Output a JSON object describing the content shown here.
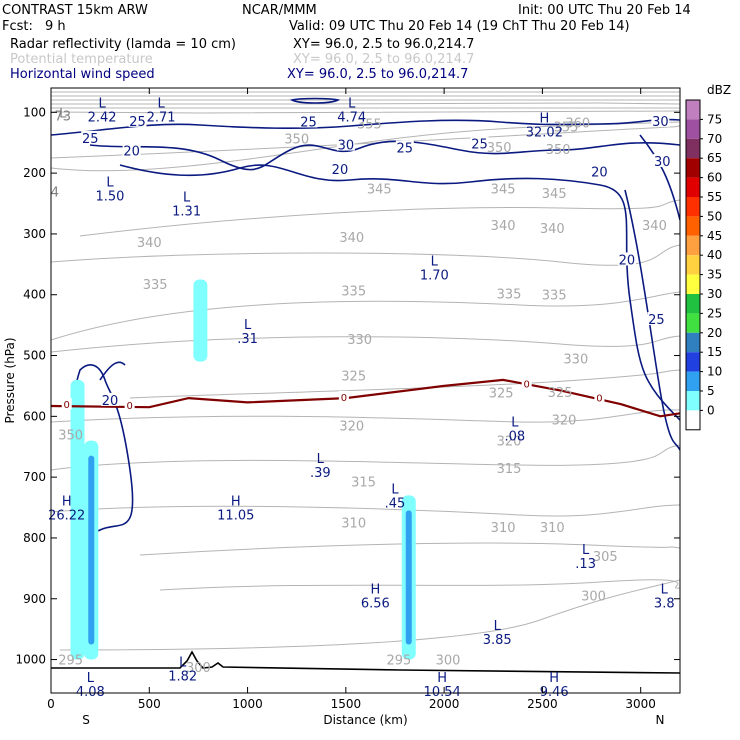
{
  "header": {
    "model": "CONTRAST 15km ARW",
    "org": "NCAR/MMM",
    "init": "Init: 00 UTC Thu 20 Feb 14",
    "fcst_label": "Fcst:",
    "fcst_value": "9 h",
    "valid": "Valid: 09 UTC Thu 20 Feb 14 (19 ChT Thu 20 Feb 14)",
    "fields": [
      {
        "name": "Radar reflectivity (lamda = 10 cm)",
        "xy": "XY=  96.0,  2.5 to  96.0,214.7",
        "color": "#000000"
      },
      {
        "name": "Potential temperature",
        "xy": "XY=  96.0,  2.5 to  96.0,214.7",
        "color": "#c8c8c8"
      },
      {
        "name": "Horizontal wind speed",
        "xy": "XY=  96.0,  2.5 to  96.0,214.7",
        "color": "#000080"
      }
    ]
  },
  "chart_data": {
    "type": "vertical-cross-section",
    "xlabel": "Distance (km)",
    "ylabel": "Pressure (hPa)",
    "xlim": [
      0,
      3200
    ],
    "ylim": [
      1055,
      60
    ],
    "xticks": [
      "0",
      "500",
      "1000",
      "1500",
      "2000",
      "2500",
      "3000"
    ],
    "yticks": [
      "100",
      "200",
      "300",
      "400",
      "500",
      "600",
      "700",
      "800",
      "900",
      "1000"
    ],
    "x_end_labels": [
      "S",
      "N"
    ],
    "colorbar": {
      "title": "dBZ",
      "levels": [
        "75",
        "70",
        "65",
        "60",
        "55",
        "50",
        "45",
        "40",
        "35",
        "30",
        "25",
        "20",
        "15",
        "10",
        "5",
        "0"
      ],
      "colors": [
        "#c080c0",
        "#a050a0",
        "#803060",
        "#a00000",
        "#e00000",
        "#ff3000",
        "#ff6000",
        "#ffa040",
        "#ffd040",
        "#ffff40",
        "#20c040",
        "#40e040",
        "#3080c0",
        "#2040e0",
        "#30a0f0",
        "#80ffff",
        "#ffffff"
      ]
    },
    "theta_labels": [
      {
        "x": 100,
        "p": 630,
        "label": "350"
      },
      {
        "x": 1250,
        "p": 143,
        "label": "350"
      },
      {
        "x": 1620,
        "p": 118,
        "label": "355"
      },
      {
        "x": 2280,
        "p": 157,
        "label": "350"
      },
      {
        "x": 2580,
        "p": 160,
        "label": "350"
      },
      {
        "x": 2620,
        "p": 123,
        "label": "355"
      },
      {
        "x": 2680,
        "p": 117,
        "label": "360"
      },
      {
        "x": 1670,
        "p": 225,
        "label": "345"
      },
      {
        "x": 2300,
        "p": 225,
        "label": "345"
      },
      {
        "x": 2560,
        "p": 233,
        "label": "345"
      },
      {
        "x": 500,
        "p": 313,
        "label": "340"
      },
      {
        "x": 1530,
        "p": 305,
        "label": "340"
      },
      {
        "x": 2300,
        "p": 285,
        "label": "340"
      },
      {
        "x": 2550,
        "p": 290,
        "label": "340"
      },
      {
        "x": 3070,
        "p": 285,
        "label": "340"
      },
      {
        "x": 530,
        "p": 382,
        "label": "335"
      },
      {
        "x": 1540,
        "p": 393,
        "label": "335"
      },
      {
        "x": 2330,
        "p": 398,
        "label": "335"
      },
      {
        "x": 2560,
        "p": 400,
        "label": "335"
      },
      {
        "x": 1570,
        "p": 473,
        "label": "330"
      },
      {
        "x": 2670,
        "p": 505,
        "label": "330"
      },
      {
        "x": 1540,
        "p": 533,
        "label": "325"
      },
      {
        "x": 2290,
        "p": 561,
        "label": "325"
      },
      {
        "x": 2590,
        "p": 560,
        "label": "325"
      },
      {
        "x": 1530,
        "p": 615,
        "label": "320"
      },
      {
        "x": 2330,
        "p": 640,
        "label": "320"
      },
      {
        "x": 2610,
        "p": 605,
        "label": "320"
      },
      {
        "x": 1590,
        "p": 707,
        "label": "315"
      },
      {
        "x": 2330,
        "p": 685,
        "label": "315"
      },
      {
        "x": 1540,
        "p": 775,
        "label": "310"
      },
      {
        "x": 2300,
        "p": 782,
        "label": "310"
      },
      {
        "x": 2550,
        "p": 782,
        "label": "310"
      },
      {
        "x": 2820,
        "p": 830,
        "label": "305"
      },
      {
        "x": 2760,
        "p": 895,
        "label": "300"
      },
      {
        "x": 750,
        "p": 1012,
        "label": "300"
      },
      {
        "x": 100,
        "p": 1000,
        "label": "295"
      },
      {
        "x": 1770,
        "p": 1000,
        "label": "295"
      },
      {
        "x": 2020,
        "p": 1000,
        "label": "300"
      }
    ],
    "wind_labels": [
      {
        "x": 440,
        "p": 114,
        "label": "25"
      },
      {
        "x": 1310,
        "p": 115,
        "label": "25"
      },
      {
        "x": 200,
        "p": 142,
        "label": "25"
      },
      {
        "x": 410,
        "p": 163,
        "label": "20"
      },
      {
        "x": 1500,
        "p": 153,
        "label": "30"
      },
      {
        "x": 1800,
        "p": 158,
        "label": "25"
      },
      {
        "x": 2180,
        "p": 151,
        "label": "25"
      },
      {
        "x": 3100,
        "p": 114,
        "label": "30"
      },
      {
        "x": 1470,
        "p": 193,
        "label": "20"
      },
      {
        "x": 2790,
        "p": 197,
        "label": "20"
      },
      {
        "x": 3110,
        "p": 180,
        "label": "30"
      },
      {
        "x": 2930,
        "p": 342,
        "label": "20"
      },
      {
        "x": 3080,
        "p": 440,
        "label": "25"
      },
      {
        "x": 300,
        "p": 573,
        "label": "20"
      }
    ],
    "wind_extremes": [
      {
        "x": 260,
        "p": 95,
        "kind": "L",
        "value": "2.42"
      },
      {
        "x": 560,
        "p": 95,
        "kind": "L",
        "value": "2.71"
      },
      {
        "x": 1530,
        "p": 95,
        "kind": "L",
        "value": "4.74"
      },
      {
        "x": 2510,
        "p": 120,
        "kind": "H",
        "value": "32.02"
      },
      {
        "x": 300,
        "p": 225,
        "kind": "L",
        "value": "1.50"
      },
      {
        "x": 690,
        "p": 250,
        "kind": "L",
        "value": "1.31"
      },
      {
        "x": 1950,
        "p": 355,
        "kind": "L",
        "value": "1.70"
      },
      {
        "x": 1000,
        "p": 460,
        "kind": "L",
        "value": ".31"
      },
      {
        "x": 2360,
        "p": 620,
        "kind": "L",
        "value": ".08"
      },
      {
        "x": 1370,
        "p": 680,
        "kind": "L",
        "value": ".39"
      },
      {
        "x": 1750,
        "p": 730,
        "kind": "L",
        "value": ".45"
      },
      {
        "x": 80,
        "p": 750,
        "kind": "H",
        "value": "26.22"
      },
      {
        "x": 940,
        "p": 750,
        "kind": "H",
        "value": "11.05"
      },
      {
        "x": 2720,
        "p": 830,
        "kind": "L",
        "value": ".13"
      },
      {
        "x": 1650,
        "p": 895,
        "kind": "H",
        "value": "6.56"
      },
      {
        "x": 3120,
        "p": 895,
        "kind": "L",
        "value": "3.8"
      },
      {
        "x": 2270,
        "p": 955,
        "kind": "L",
        "value": "3.85"
      },
      {
        "x": 670,
        "p": 1015,
        "kind": "L",
        "value": "1.82"
      },
      {
        "x": 200,
        "p": 1040,
        "kind": "L",
        "value": "4.08"
      },
      {
        "x": 1990,
        "p": 1040,
        "kind": "H",
        "value": "10.54"
      },
      {
        "x": 2560,
        "p": 1040,
        "kind": "H",
        "value": "9.46"
      }
    ],
    "grey_annotations": [
      {
        "x": 60,
        "p": 100,
        "label": "L"
      },
      {
        "x": 60,
        "p": 105,
        "label": "73"
      },
      {
        "x": 20,
        "p": 230,
        "label": "4"
      }
    ],
    "freezing_level_label": "0",
    "freezing_level": [
      [
        0,
        583
      ],
      [
        500,
        585
      ],
      [
        700,
        570
      ],
      [
        1000,
        577
      ],
      [
        1500,
        570
      ],
      [
        2000,
        550
      ],
      [
        2300,
        540
      ],
      [
        2600,
        558
      ],
      [
        2900,
        580
      ],
      [
        3100,
        600
      ],
      [
        3200,
        595
      ]
    ],
    "freezing_labels": [
      {
        "x": 80,
        "p": 580
      },
      {
        "x": 400,
        "p": 581
      },
      {
        "x": 1490,
        "p": 568
      },
      {
        "x": 2420,
        "p": 546
      },
      {
        "x": 2790,
        "p": 569
      }
    ],
    "reflectivity_cores": [
      {
        "x": 135,
        "p_top": 540,
        "p_bot": 1000,
        "dbz": "5-10"
      },
      {
        "x": 205,
        "p_top": 640,
        "p_bot": 1000,
        "dbz": "10-15"
      },
      {
        "x": 1820,
        "p_top": 730,
        "p_bot": 1000,
        "dbz": "10-15"
      },
      {
        "x": 760,
        "p_top": 375,
        "p_bot": 510,
        "dbz": "5-10"
      }
    ]
  }
}
